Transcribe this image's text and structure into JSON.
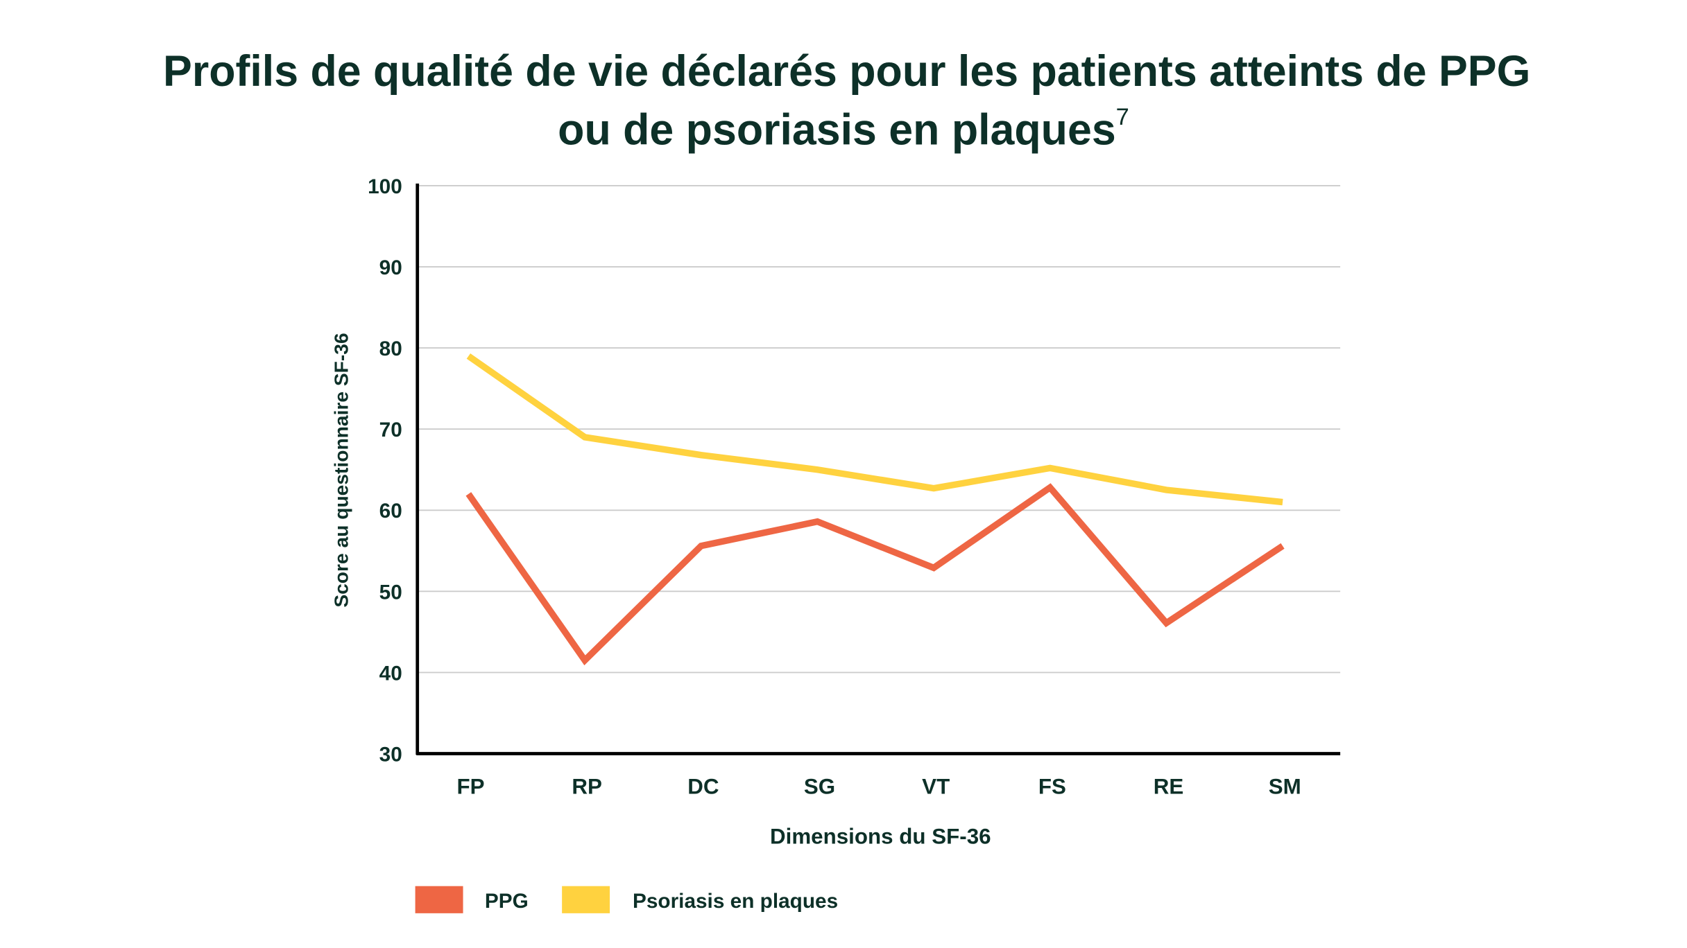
{
  "chart_data": {
    "type": "line",
    "title": "Profils de qualité de vie déclarés pour les patients atteints de PPG",
    "title_line2": "ou de psoriasis en plaques",
    "title_superscript": "7",
    "xlabel": "Dimensions du SF-36",
    "ylabel": "Score au questionnaire SF-36",
    "categories": [
      "FP",
      "RP",
      "DC",
      "SG",
      "VT",
      "FS",
      "RE",
      "SM"
    ],
    "ylim": [
      30,
      100
    ],
    "yticks": [
      30,
      40,
      50,
      60,
      70,
      80,
      90,
      100
    ],
    "grid": true,
    "legend_placement": "bottom-left",
    "series": [
      {
        "name": "PPG",
        "color": "#ee6644",
        "values": [
          62,
          41.5,
          55.6,
          58.6,
          52.9,
          62.8,
          46.1,
          55.6
        ]
      },
      {
        "name": "Psoriasis en plaques",
        "color": "#ffd23f",
        "values": [
          79,
          69,
          66.8,
          65,
          62.7,
          65.2,
          62.5,
          61
        ]
      }
    ]
  }
}
